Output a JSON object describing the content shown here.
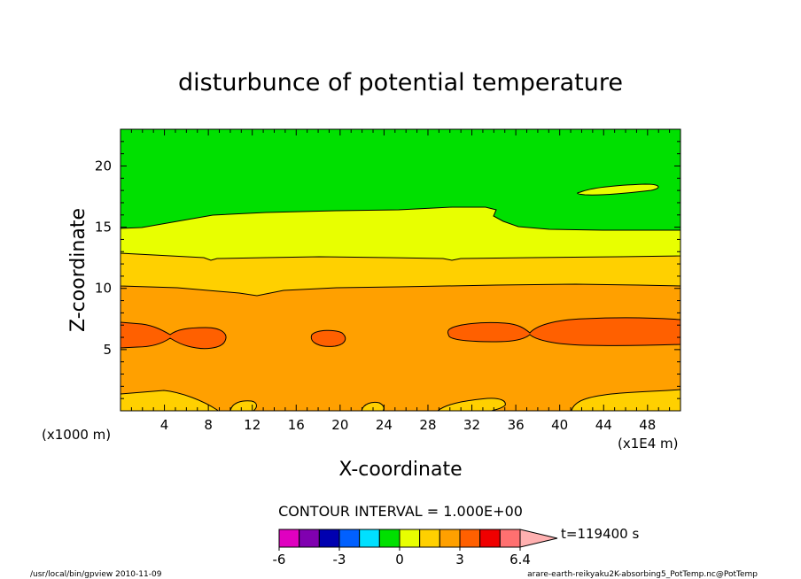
{
  "chart_data": {
    "type": "contour",
    "title": "disturbunce of potential temperature",
    "xlabel": "X-coordinate",
    "ylabel": "Z-coordinate",
    "x_unit": "(x1E4 m)",
    "y_unit": "(x1000 m)",
    "xlim": [
      0,
      51
    ],
    "ylim": [
      0,
      23
    ],
    "x_ticks": [
      4,
      8,
      12,
      16,
      20,
      24,
      28,
      32,
      36,
      40,
      44,
      48
    ],
    "y_ticks": [
      5,
      10,
      15,
      20
    ],
    "contour_interval_label": "CONTOUR INTERVAL = 1.000E+00",
    "time_label": "t=119400 s",
    "colorbar": {
      "tick_labels": [
        "-6",
        "-3",
        "0",
        "3",
        "6.4"
      ],
      "tick_values": [
        -6,
        -3,
        0,
        3,
        6.4
      ],
      "bins": [
        {
          "min": -6,
          "max": -5,
          "color": "#e000c0"
        },
        {
          "min": -5,
          "max": -4,
          "color": "#8000b0"
        },
        {
          "min": -4,
          "max": -3,
          "color": "#0000b0"
        },
        {
          "min": -3,
          "max": -2,
          "color": "#0060ff"
        },
        {
          "min": -2,
          "max": -1,
          "color": "#00e0ff"
        },
        {
          "min": -1,
          "max": 0,
          "color": "#00e000"
        },
        {
          "min": 0,
          "max": 1,
          "color": "#e8ff00"
        },
        {
          "min": 1,
          "max": 2,
          "color": "#ffd000"
        },
        {
          "min": 2,
          "max": 3,
          "color": "#ffa000"
        },
        {
          "min": 3,
          "max": 4,
          "color": "#ff6000"
        },
        {
          "min": 4,
          "max": 5,
          "color": "#f00000"
        },
        {
          "min": 5,
          "max": 6.4,
          "color": "#ff7070"
        }
      ],
      "over_color": "#ffb0b0"
    },
    "bands": [
      {
        "value_range": [
          -1,
          0
        ],
        "color": "#00e000",
        "z_range": [
          15,
          23
        ]
      },
      {
        "value_range": [
          0,
          1
        ],
        "color": "#e8ff00",
        "z_range": [
          12.7,
          15.5
        ]
      },
      {
        "value_range": [
          1,
          2
        ],
        "color": "#ffd000",
        "z_range": [
          10,
          12.7
        ]
      },
      {
        "value_range": [
          2,
          3
        ],
        "color": "#ffa000",
        "z_range": [
          1.5,
          10
        ]
      },
      {
        "value_range": [
          3,
          4
        ],
        "color": "#ff6000",
        "z_range": [
          5,
          7
        ]
      },
      {
        "value_range": [
          1,
          2
        ],
        "color": "#ffd000",
        "z_range": [
          0,
          1.5
        ]
      }
    ]
  },
  "footer": {
    "left": "/usr/local/bin/gpview   2010-11-09",
    "right": "arare-earth-reikyaku2K-absorbing5_PotTemp.nc@PotTemp"
  }
}
